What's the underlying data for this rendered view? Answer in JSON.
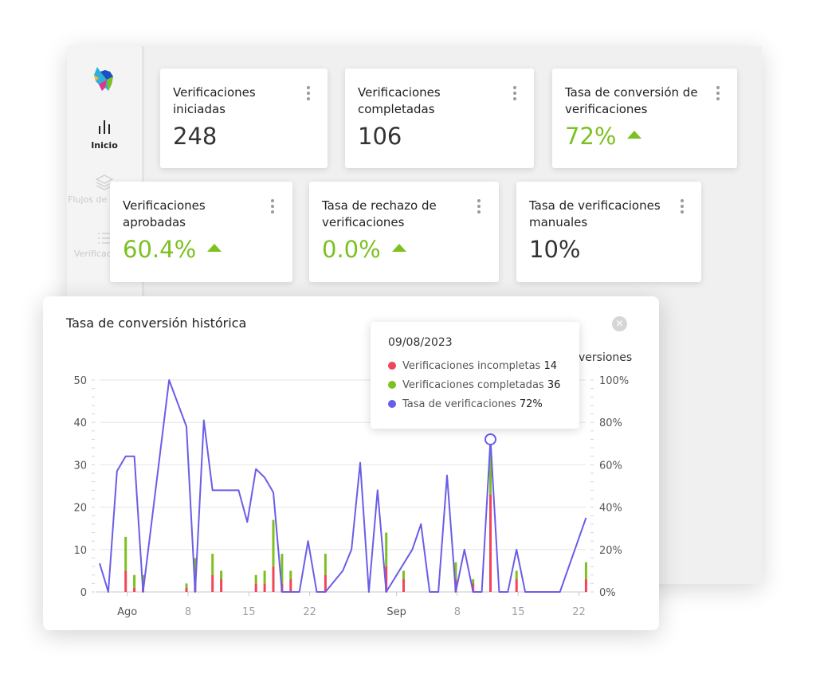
{
  "sidebar": {
    "items": [
      {
        "label": "Inicio",
        "icon": "bar-chart-icon"
      },
      {
        "label": "Flujos de trabajo",
        "icon": "layers-icon"
      },
      {
        "label": "Verificaciones",
        "icon": "list-icon"
      }
    ]
  },
  "cards": [
    {
      "title": "Verificaciones iniciadas",
      "value": "248",
      "trend": ""
    },
    {
      "title": "Verificaciones completadas",
      "value": "106",
      "trend": ""
    },
    {
      "title": "Tasa de conversión de verificaciones",
      "value": "72%",
      "trend": "up"
    },
    {
      "title": "Verificaciones aprobadas",
      "value": "60.4%",
      "trend": "up"
    },
    {
      "title": "Tasa de rechazo de verificaciones",
      "value": "0.0%",
      "trend": "up"
    },
    {
      "title": "Tasa de verificaciones manuales",
      "value": "10%",
      "trend": ""
    }
  ],
  "chart_panel": {
    "title": "Tasa de conversión histórica",
    "right_axis_label": "versiones"
  },
  "tooltip": {
    "date": "09/08/2023",
    "rows": [
      {
        "label": "Verificaciones incompletas",
        "value": "14"
      },
      {
        "label": "Verificaciones completadas",
        "value": "36"
      },
      {
        "label": "Tasa de verificaciones",
        "value": "72%"
      }
    ]
  },
  "colors": {
    "accent_green": "#7cc120",
    "incomplete_red": "#f0455a",
    "complete_green": "#7cc120",
    "rate_line": "#6a5de8"
  },
  "chart_data": {
    "type": "bar",
    "title": "Tasa de conversión histórica",
    "x_tick_labels": [
      "Ago",
      "8",
      "15",
      "22",
      "Sep",
      "8",
      "15",
      "22"
    ],
    "left_ticks": [
      "0",
      "10",
      "20",
      "30",
      "40",
      "50"
    ],
    "right_ticks": [
      "0%",
      "20%",
      "40%",
      "60%",
      "80%",
      "100%"
    ],
    "ylim_left": [
      0,
      50
    ],
    "ylim_right": [
      0,
      100
    ],
    "grid": true,
    "series": [
      {
        "name": "Verificaciones incompletas",
        "kind": "stacked-bar",
        "points": [
          [
            3,
            5
          ],
          [
            4,
            1
          ],
          [
            5,
            1
          ],
          [
            10,
            1
          ],
          [
            11,
            3
          ],
          [
            13,
            4
          ],
          [
            14,
            3
          ],
          [
            18,
            2
          ],
          [
            19,
            2
          ],
          [
            20,
            6
          ],
          [
            21,
            2
          ],
          [
            22,
            3
          ],
          [
            26,
            4
          ],
          [
            33,
            6
          ],
          [
            35,
            3
          ],
          [
            41,
            3
          ],
          [
            43,
            2
          ],
          [
            45,
            23
          ],
          [
            48,
            3
          ],
          [
            56,
            3
          ]
        ]
      },
      {
        "name": "Verificaciones completadas",
        "kind": "stacked-bar",
        "points": [
          [
            3,
            13
          ],
          [
            4,
            4
          ],
          [
            5,
            4
          ],
          [
            10,
            2
          ],
          [
            11,
            8
          ],
          [
            13,
            9
          ],
          [
            14,
            5
          ],
          [
            18,
            4
          ],
          [
            19,
            5
          ],
          [
            20,
            17
          ],
          [
            21,
            9
          ],
          [
            22,
            5
          ],
          [
            26,
            9
          ],
          [
            33,
            14
          ],
          [
            35,
            5
          ],
          [
            41,
            7
          ],
          [
            43,
            3
          ],
          [
            45,
            36
          ],
          [
            48,
            5
          ],
          [
            56,
            7
          ]
        ]
      },
      {
        "name": "Tasa de verificaciones",
        "kind": "line",
        "points": [
          [
            0,
            13.5
          ],
          [
            1,
            0
          ],
          [
            2,
            57
          ],
          [
            3,
            64
          ],
          [
            4,
            64
          ],
          [
            5,
            0
          ],
          [
            8,
            100
          ],
          [
            10,
            78
          ],
          [
            11,
            0
          ],
          [
            12,
            81
          ],
          [
            13,
            48
          ],
          [
            14,
            48
          ],
          [
            15,
            48
          ],
          [
            16,
            48
          ],
          [
            17,
            33
          ],
          [
            18,
            58
          ],
          [
            19,
            54
          ],
          [
            20,
            47
          ],
          [
            21,
            0
          ],
          [
            22,
            0
          ],
          [
            23,
            0
          ],
          [
            24,
            24
          ],
          [
            25,
            0
          ],
          [
            26,
            0
          ],
          [
            28,
            10
          ],
          [
            29,
            20
          ],
          [
            30,
            61
          ],
          [
            31,
            0
          ],
          [
            32,
            48
          ],
          [
            33,
            0
          ],
          [
            36,
            20
          ],
          [
            37,
            32
          ],
          [
            38,
            0
          ],
          [
            39,
            0
          ],
          [
            40,
            55
          ],
          [
            41,
            0
          ],
          [
            42,
            20
          ],
          [
            43,
            0
          ],
          [
            44,
            0
          ],
          [
            45,
            72
          ],
          [
            46,
            0
          ],
          [
            47,
            0
          ],
          [
            48,
            20
          ],
          [
            49,
            0
          ],
          [
            50,
            0
          ],
          [
            51,
            0
          ],
          [
            52,
            0
          ],
          [
            53,
            0
          ],
          [
            56,
            35
          ]
        ]
      }
    ]
  }
}
